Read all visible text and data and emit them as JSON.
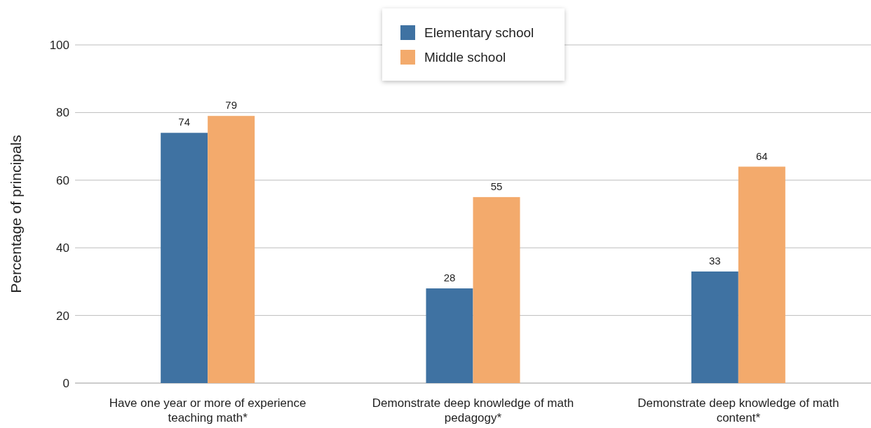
{
  "chart_data": {
    "type": "bar",
    "ylabel": "Percentage of principals",
    "categories": [
      "Have one year or more of experience teaching math*",
      "Demonstrate deep knowledge of math pedagogy*",
      "Demonstrate deep knowledge of math content*"
    ],
    "series": [
      {
        "name": "Elementary school",
        "color": "#3f72a2",
        "values": [
          74,
          28,
          33
        ]
      },
      {
        "name": "Middle school",
        "color": "#f3aa6c",
        "values": [
          79,
          55,
          64
        ]
      }
    ],
    "ylim": [
      0,
      100
    ],
    "yticks": [
      0,
      20,
      40,
      60,
      80,
      100
    ],
    "grid": "y",
    "legend": "top",
    "data_labels": true
  }
}
